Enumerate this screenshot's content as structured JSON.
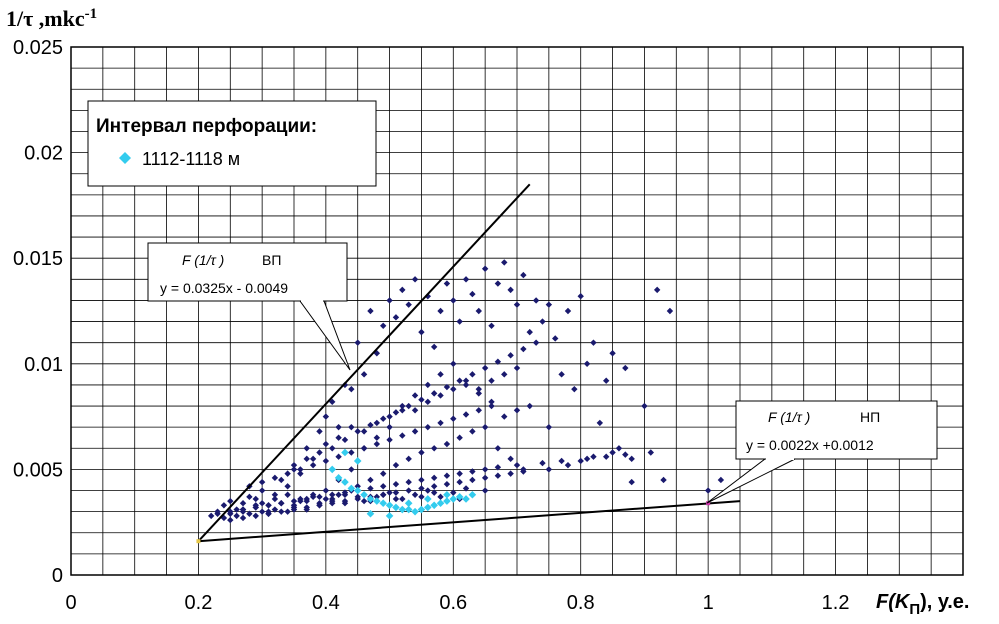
{
  "chart_data": {
    "type": "scatter",
    "y_axis_label": {
      "main": "1/τ ,mkc",
      "sup": "-1"
    },
    "x_axis_label": {
      "prefix": "F(K",
      "sub": "П",
      "suffix": "), у.е."
    },
    "xlim": [
      0,
      1.4
    ],
    "ylim": [
      0,
      0.025
    ],
    "x_ticks": [
      "0",
      "0.2",
      "0.4",
      "0.6",
      "0.8",
      "1",
      "1.2"
    ],
    "y_ticks": [
      "0",
      "0.005",
      "0.01",
      "0.015",
      "0.02",
      "0.025"
    ],
    "grid": true,
    "legend": {
      "title": "Интервал перфорации:",
      "entries": [
        {
          "label": "1112-1118 м",
          "color": "#33ccee"
        }
      ],
      "placement": "top-left"
    },
    "lines": [
      {
        "x": [
          0.2,
          0.72
        ],
        "y": [
          0.0016,
          0.0185
        ],
        "color": "#000000"
      },
      {
        "x": [
          0.2,
          1.05
        ],
        "y": [
          0.0016,
          0.0035
        ],
        "color": "#000000"
      }
    ],
    "annotations": [
      {
        "func": "F (1/τ )",
        "tag": "ВП",
        "equation": "y = 0.0325x - 0.0049",
        "target": [
          0.44,
          0.0097
        ]
      },
      {
        "func": "F (1/τ )",
        "tag": "НП",
        "equation": "y = 0.0022x +0.0012",
        "target": [
          1.0,
          0.0034
        ]
      }
    ],
    "series": [
      {
        "color": "#1a1a6e",
        "x": [
          0.22,
          0.23,
          0.24,
          0.24,
          0.25,
          0.25,
          0.26,
          0.26,
          0.27,
          0.27,
          0.28,
          0.28,
          0.29,
          0.29,
          0.3,
          0.3,
          0.31,
          0.31,
          0.32,
          0.32,
          0.33,
          0.33,
          0.34,
          0.34,
          0.35,
          0.35,
          0.36,
          0.36,
          0.37,
          0.37,
          0.38,
          0.38,
          0.39,
          0.39,
          0.4,
          0.4,
          0.41,
          0.41,
          0.42,
          0.42,
          0.43,
          0.43,
          0.44,
          0.44,
          0.45,
          0.45,
          0.46,
          0.46,
          0.47,
          0.47,
          0.48,
          0.48,
          0.49,
          0.49,
          0.5,
          0.5,
          0.51,
          0.51,
          0.52,
          0.52,
          0.53,
          0.53,
          0.54,
          0.54,
          0.55,
          0.55,
          0.56,
          0.56,
          0.57,
          0.57,
          0.58,
          0.58,
          0.59,
          0.59,
          0.6,
          0.6,
          0.61,
          0.61,
          0.62,
          0.62,
          0.63,
          0.63,
          0.64,
          0.64,
          0.65,
          0.65,
          0.66,
          0.66,
          0.67,
          0.67,
          0.68,
          0.68,
          0.69,
          0.69,
          0.7,
          0.7,
          0.71,
          0.71,
          0.72,
          0.72,
          0.73,
          0.74,
          0.75,
          0.75,
          0.76,
          0.77,
          0.78,
          0.79,
          0.8,
          0.81,
          0.82,
          0.83,
          0.84,
          0.85,
          0.86,
          0.87,
          0.88,
          0.9,
          0.92,
          0.93,
          0.94,
          1.0,
          1.02,
          0.3,
          0.32,
          0.34,
          0.36,
          0.38,
          0.4,
          0.42,
          0.44,
          0.46,
          0.48,
          0.5,
          0.52,
          0.54,
          0.56,
          0.58,
          0.6,
          0.62,
          0.27,
          0.29,
          0.31,
          0.33,
          0.35,
          0.37,
          0.39,
          0.41,
          0.43,
          0.45,
          0.47,
          0.49,
          0.51,
          0.53,
          0.55,
          0.57,
          0.59,
          0.61,
          0.63,
          0.65,
          0.4,
          0.42,
          0.44,
          0.46,
          0.48,
          0.5,
          0.52,
          0.54,
          0.56,
          0.58,
          0.6,
          0.62,
          0.64,
          0.66,
          0.68,
          0.7,
          0.35,
          0.37,
          0.39,
          0.41,
          0.43,
          0.45,
          0.47,
          0.49,
          0.51,
          0.53,
          0.55,
          0.57,
          0.59,
          0.61,
          0.63,
          0.65,
          0.67,
          0.69,
          0.71,
          0.73,
          0.25,
          0.27,
          0.29,
          0.31,
          0.33,
          0.35,
          0.37,
          0.39,
          0.41,
          0.43,
          0.45,
          0.47,
          0.49,
          0.51,
          0.53,
          0.55,
          0.57,
          0.59,
          0.61,
          0.63,
          0.65,
          0.67,
          0.69,
          0.71,
          0.75,
          0.78,
          0.8,
          0.82,
          0.85,
          0.88,
          0.28,
          0.3,
          0.32,
          0.34,
          0.36,
          0.38,
          0.4,
          0.42,
          0.44,
          0.46,
          0.48,
          0.5,
          0.52,
          0.54,
          0.56,
          0.58,
          0.6,
          0.62,
          0.64,
          0.66,
          0.23,
          0.25,
          0.27,
          0.29,
          0.31,
          0.33,
          0.35,
          0.37,
          0.39,
          0.41,
          0.43,
          0.45,
          0.47,
          0.49,
          0.51,
          0.53,
          0.55,
          0.57,
          0.59,
          0.61,
          0.63,
          0.65,
          0.67,
          0.7,
          0.74,
          0.77,
          0.81,
          0.84,
          0.87,
          0.91
        ],
        "y": [
          0.0028,
          0.003,
          0.0027,
          0.0033,
          0.0029,
          0.0035,
          0.0031,
          0.0028,
          0.0034,
          0.003,
          0.0037,
          0.0029,
          0.0032,
          0.0036,
          0.003,
          0.004,
          0.0033,
          0.0029,
          0.0038,
          0.0031,
          0.0045,
          0.0034,
          0.0042,
          0.003,
          0.0052,
          0.0033,
          0.0048,
          0.0036,
          0.006,
          0.0031,
          0.0055,
          0.0038,
          0.0068,
          0.0034,
          0.0075,
          0.004,
          0.0082,
          0.0035,
          0.007,
          0.0045,
          0.009,
          0.0038,
          0.0088,
          0.005,
          0.011,
          0.0042,
          0.0095,
          0.006,
          0.0125,
          0.0045,
          0.0105,
          0.0065,
          0.0118,
          0.0048,
          0.013,
          0.007,
          0.0122,
          0.0052,
          0.0135,
          0.0078,
          0.0128,
          0.0055,
          0.014,
          0.0085,
          0.0115,
          0.0058,
          0.0132,
          0.009,
          0.0108,
          0.006,
          0.0125,
          0.0095,
          0.0138,
          0.0062,
          0.013,
          0.01,
          0.012,
          0.0065,
          0.014,
          0.0092,
          0.0133,
          0.0068,
          0.0125,
          0.0088,
          0.0145,
          0.007,
          0.0118,
          0.0082,
          0.0138,
          0.006,
          0.0148,
          0.0075,
          0.0135,
          0.0055,
          0.0128,
          0.0078,
          0.0142,
          0.005,
          0.0115,
          0.008,
          0.013,
          0.012,
          0.0128,
          0.007,
          0.0112,
          0.0095,
          0.0125,
          0.0088,
          0.0132,
          0.01,
          0.011,
          0.0072,
          0.0092,
          0.0105,
          0.006,
          0.0098,
          0.0055,
          0.008,
          0.0135,
          0.0045,
          0.0125,
          0.004,
          0.0045,
          0.0034,
          0.0036,
          0.0038,
          0.0035,
          0.0037,
          0.0036,
          0.0038,
          0.004,
          0.0035,
          0.0037,
          0.0039,
          0.0036,
          0.0038,
          0.004,
          0.0037,
          0.0039,
          0.0041,
          0.0031,
          0.0033,
          0.003,
          0.0034,
          0.0032,
          0.0035,
          0.0033,
          0.0036,
          0.0034,
          0.0037,
          0.0035,
          0.0038,
          0.0036,
          0.0034,
          0.0037,
          0.0039,
          0.0035,
          0.0036,
          0.0038,
          0.004,
          0.0062,
          0.0065,
          0.007,
          0.0068,
          0.0072,
          0.0075,
          0.008,
          0.0078,
          0.0082,
          0.0085,
          0.0088,
          0.009,
          0.0086,
          0.0092,
          0.0095,
          0.0098,
          0.005,
          0.0055,
          0.0058,
          0.006,
          0.0064,
          0.0068,
          0.0071,
          0.0074,
          0.0077,
          0.008,
          0.0083,
          0.0086,
          0.0089,
          0.0092,
          0.0095,
          0.0098,
          0.0101,
          0.0104,
          0.0107,
          0.011,
          0.0026,
          0.0027,
          0.0028,
          0.0029,
          0.003,
          0.0031,
          0.0032,
          0.0033,
          0.0034,
          0.0035,
          0.0036,
          0.0037,
          0.0038,
          0.0039,
          0.004,
          0.0041,
          0.0042,
          0.0043,
          0.0044,
          0.0045,
          0.0046,
          0.0047,
          0.0048,
          0.0049,
          0.005,
          0.0052,
          0.0054,
          0.0056,
          0.0058,
          0.0044,
          0.0042,
          0.0044,
          0.0046,
          0.0048,
          0.005,
          0.0052,
          0.0054,
          0.0056,
          0.0058,
          0.006,
          0.0062,
          0.0064,
          0.0066,
          0.0068,
          0.007,
          0.0072,
          0.0074,
          0.0076,
          0.0078,
          0.008,
          0.0029,
          0.003,
          0.0031,
          0.0032,
          0.0033,
          0.0034,
          0.0035,
          0.0036,
          0.0037,
          0.0038,
          0.0039,
          0.004,
          0.0041,
          0.0042,
          0.0043,
          0.0044,
          0.0045,
          0.0046,
          0.0047,
          0.0048,
          0.0049,
          0.005,
          0.0051,
          0.0052,
          0.0053,
          0.0054,
          0.0055,
          0.0056,
          0.0057,
          0.0058
        ]
      },
      {
        "name": "1112-1118 м",
        "color": "#33ccee",
        "x": [
          0.41,
          0.42,
          0.43,
          0.44,
          0.45,
          0.46,
          0.47,
          0.48,
          0.49,
          0.5,
          0.51,
          0.52,
          0.53,
          0.54,
          0.55,
          0.56,
          0.57,
          0.58,
          0.59,
          0.6,
          0.61,
          0.62,
          0.63,
          0.45,
          0.47,
          0.5,
          0.53,
          0.56,
          0.59,
          0.43
        ],
        "y": [
          0.005,
          0.0046,
          0.0044,
          0.0041,
          0.004,
          0.0038,
          0.0036,
          0.0035,
          0.0034,
          0.0033,
          0.0032,
          0.0031,
          0.0031,
          0.003,
          0.0031,
          0.0032,
          0.0033,
          0.0034,
          0.0035,
          0.0036,
          0.0037,
          0.0036,
          0.0038,
          0.0054,
          0.0029,
          0.0028,
          0.0034,
          0.0036,
          0.0038,
          0.0058
        ]
      }
    ]
  }
}
